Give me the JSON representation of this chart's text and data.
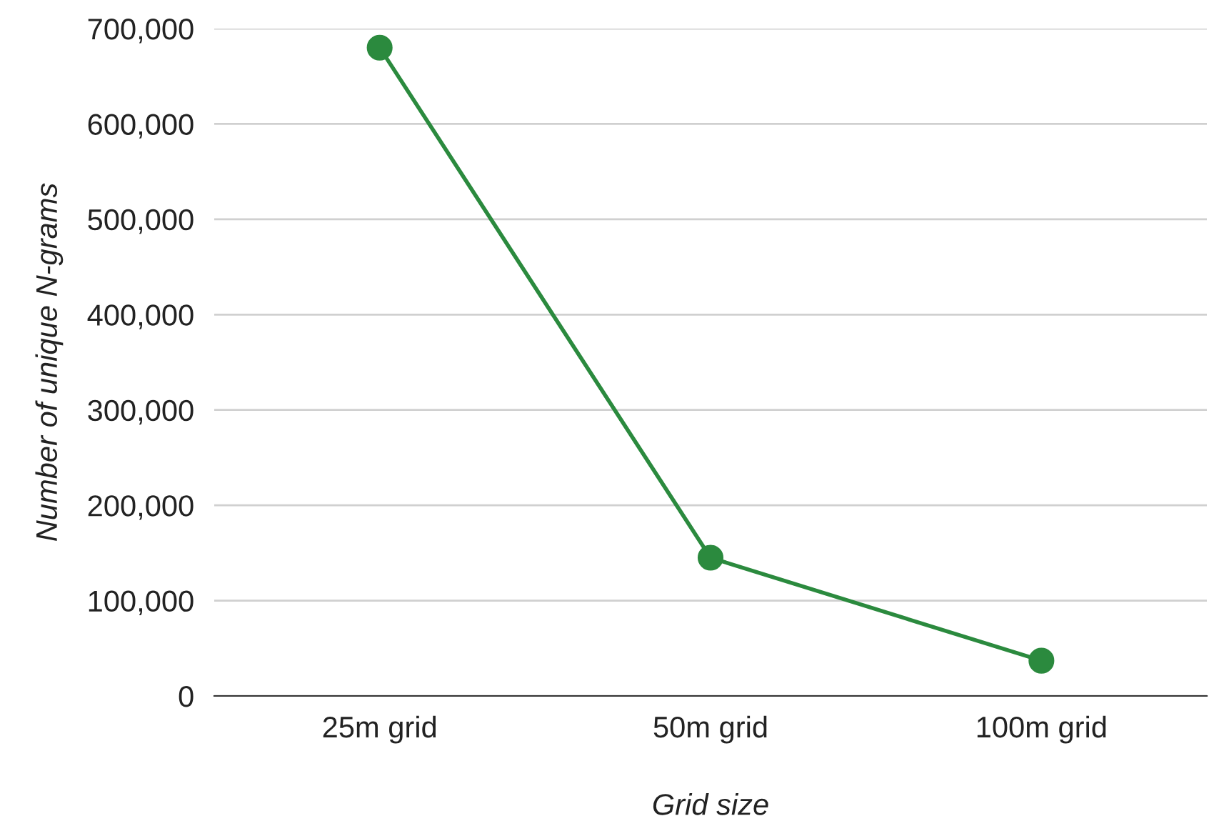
{
  "chart_data": {
    "type": "line",
    "xlabel": "Grid size",
    "ylabel": "Number of unique N-grams",
    "categories": [
      "25m grid",
      "50m grid",
      "100m grid"
    ],
    "series": [
      {
        "color": "#2b8a3e",
        "values": [
          680000,
          145000,
          37000
        ]
      }
    ],
    "ylim": [
      0,
      700000
    ],
    "yticks": [
      {
        "value": 0,
        "label": "0"
      },
      {
        "value": 100000,
        "label": "100,000"
      },
      {
        "value": 200000,
        "label": "200,000"
      },
      {
        "value": 300000,
        "label": "300,000"
      },
      {
        "value": 400000,
        "label": "400,000"
      },
      {
        "value": 500000,
        "label": "500,000"
      },
      {
        "value": 600000,
        "label": "600,000"
      },
      {
        "value": 700000,
        "label": "700,000"
      }
    ],
    "grid": "y",
    "marker": "circle",
    "line_style": "solid"
  }
}
